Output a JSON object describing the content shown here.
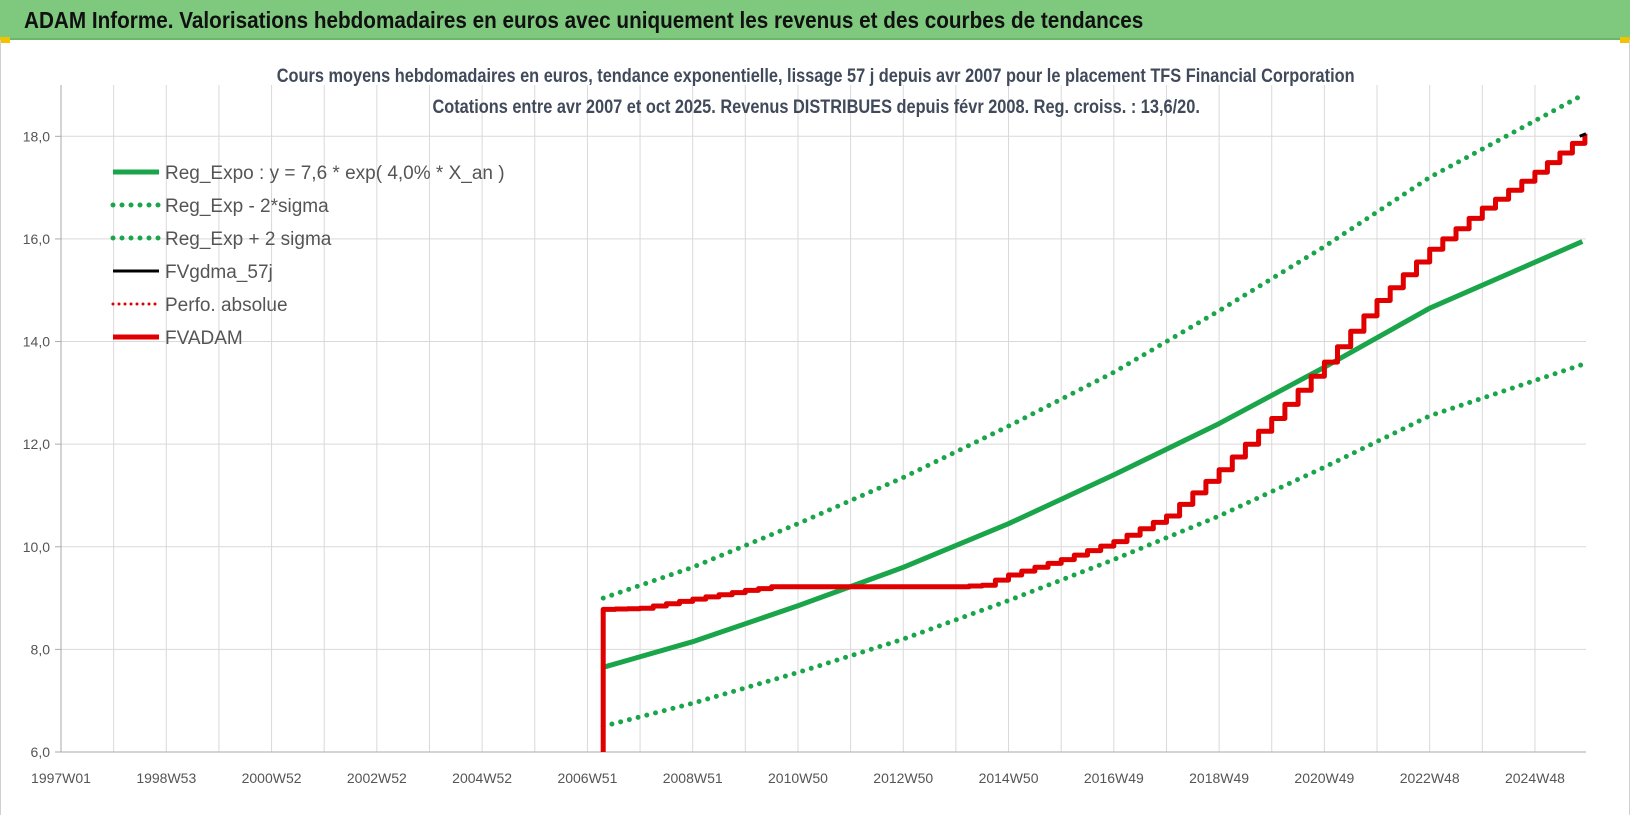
{
  "header": {
    "title": "ADAM Informe. Valorisations hebdomadaires en euros avec uniquement les revenus et des courbes de tendances"
  },
  "colors": {
    "header_bg": "#7fc97f",
    "trend": "#1aa54a",
    "band": "#1aa54a",
    "fvgdma": "#000000",
    "perfo": "#e00000",
    "fvadam": "#e00000",
    "grid": "#d9d9d9"
  },
  "chart_data": {
    "type": "line",
    "title": "Cours moyens hebdomadaires en euros, tendance exponentielle, lissage 57 j depuis avr 2007 pour le placement TFS Financial Corporation",
    "subtitle": "Cotations entre avr 2007 et oct 2025.  Revenus DISTRIBUES depuis févr 2008. Reg. croiss. : 13,6/20.",
    "xlabel": "",
    "ylabel": "",
    "ylim": [
      6.0,
      19.0
    ],
    "xlim": [
      1997.0,
      2025.97
    ],
    "grid": true,
    "legend_position": "top-left",
    "y_ticks": [
      "6,0",
      "8,0",
      "10,0",
      "12,0",
      "14,0",
      "16,0",
      "18,0"
    ],
    "y_tick_values": [
      6,
      8,
      10,
      12,
      14,
      16,
      18
    ],
    "x_ticks": [
      "1997W01",
      "1998W53",
      "2000W52",
      "2002W52",
      "2004W52",
      "2006W51",
      "2008W51",
      "2010W50",
      "2012W50",
      "2014W50",
      "2016W49",
      "2018W49",
      "2020W49",
      "2022W48",
      "2024W48"
    ],
    "x_tick_values": [
      1997.0,
      1999.0,
      2001.0,
      2003.0,
      2005.0,
      2007.0,
      2009.0,
      2011.0,
      2013.0,
      2015.0,
      2017.0,
      2019.0,
      2021.0,
      2023.0,
      2025.0
    ],
    "series": [
      {
        "name": "Reg_Expo : y = 7,6 * exp( 4,0% *  X_an )",
        "style": "solid",
        "x": [
          2007.3,
          2009.0,
          2011.0,
          2013.0,
          2015.0,
          2017.0,
          2019.0,
          2021.0,
          2023.0,
          2025.9
        ],
        "y": [
          7.65,
          8.15,
          8.85,
          9.6,
          10.45,
          11.4,
          12.4,
          13.5,
          14.65,
          15.95
        ]
      },
      {
        "name": "Reg_Exp - 2*sigma",
        "style": "dotted",
        "x": [
          2007.3,
          2009.0,
          2011.0,
          2013.0,
          2015.0,
          2017.0,
          2019.0,
          2021.0,
          2023.0,
          2025.9
        ],
        "y": [
          6.5,
          6.95,
          7.55,
          8.2,
          8.95,
          9.75,
          10.6,
          11.55,
          12.55,
          13.55
        ]
      },
      {
        "name": "Reg_Exp + 2 sigma",
        "style": "dotted",
        "x": [
          2007.3,
          2009.0,
          2011.0,
          2013.0,
          2015.0,
          2017.0,
          2019.0,
          2021.0,
          2023.0,
          2025.9
        ],
        "y": [
          9.0,
          9.6,
          10.45,
          11.35,
          12.35,
          13.4,
          14.6,
          15.85,
          17.2,
          18.8
        ]
      },
      {
        "name": "FVgdma_57j",
        "style": "solid-thin",
        "x": [
          2025.85,
          2025.97
        ],
        "y": [
          18.0,
          18.05
        ]
      },
      {
        "name": "Perfo. absolue",
        "style": "dotted-red",
        "x": [],
        "y": []
      },
      {
        "name": "FVADAM",
        "style": "solid-red",
        "x": [
          2007.3,
          2007.3,
          2008.0,
          2009.0,
          2010.0,
          2010.5,
          2011.0,
          2012.0,
          2013.0,
          2014.0,
          2014.5,
          2015.0,
          2016.0,
          2017.0,
          2018.0,
          2019.0,
          2020.0,
          2021.0,
          2022.0,
          2023.0,
          2024.0,
          2025.0,
          2025.95
        ],
        "y": [
          6.0,
          8.78,
          8.8,
          8.98,
          9.15,
          9.22,
          9.22,
          9.22,
          9.22,
          9.22,
          9.25,
          9.45,
          9.75,
          10.1,
          10.6,
          11.5,
          12.5,
          13.6,
          14.8,
          15.8,
          16.6,
          17.3,
          18.05
        ]
      }
    ]
  }
}
